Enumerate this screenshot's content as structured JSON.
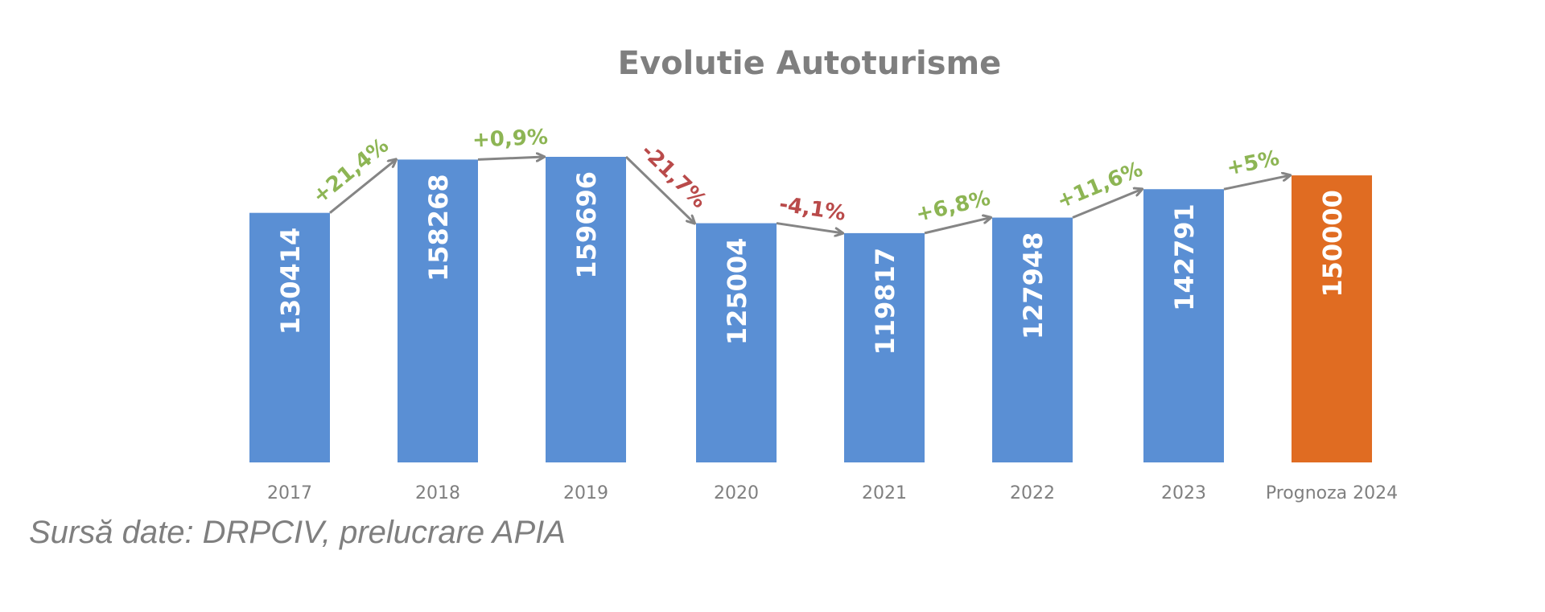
{
  "chart_data": {
    "type": "bar",
    "title": "Evolutie Autoturisme",
    "categories": [
      "2017",
      "2018",
      "2019",
      "2020",
      "2021",
      "2022",
      "2023",
      "Prognoza 2024"
    ],
    "values": [
      130414,
      158268,
      159696,
      125004,
      119817,
      127948,
      142791,
      150000
    ],
    "value_labels": [
      "130414",
      "158268",
      "159696",
      "125004",
      "119817",
      "127948",
      "142791",
      "150000"
    ],
    "bar_colors": [
      "#5a8fd4",
      "#5a8fd4",
      "#5a8fd4",
      "#5a8fd4",
      "#5a8fd4",
      "#5a8fd4",
      "#5a8fd4",
      "#e06c22"
    ],
    "changes": [
      {
        "label": "+21,4%",
        "color": "#8db554"
      },
      {
        "label": "+0,9%",
        "color": "#8db554"
      },
      {
        "label": "-21,7%",
        "color": "#b94a4a"
      },
      {
        "label": "-4,1%",
        "color": "#b94a4a"
      },
      {
        "label": "+6,8%",
        "color": "#8db554"
      },
      {
        "label": "+11,6%",
        "color": "#8db554"
      },
      {
        "label": "+5%",
        "color": "#8db554"
      }
    ],
    "arrow_color": "#858585",
    "xlabel": "",
    "ylabel": "",
    "grid": false,
    "legend": "none"
  },
  "source_note": "Sursă date: DRPCIV, prelucrare APIA"
}
